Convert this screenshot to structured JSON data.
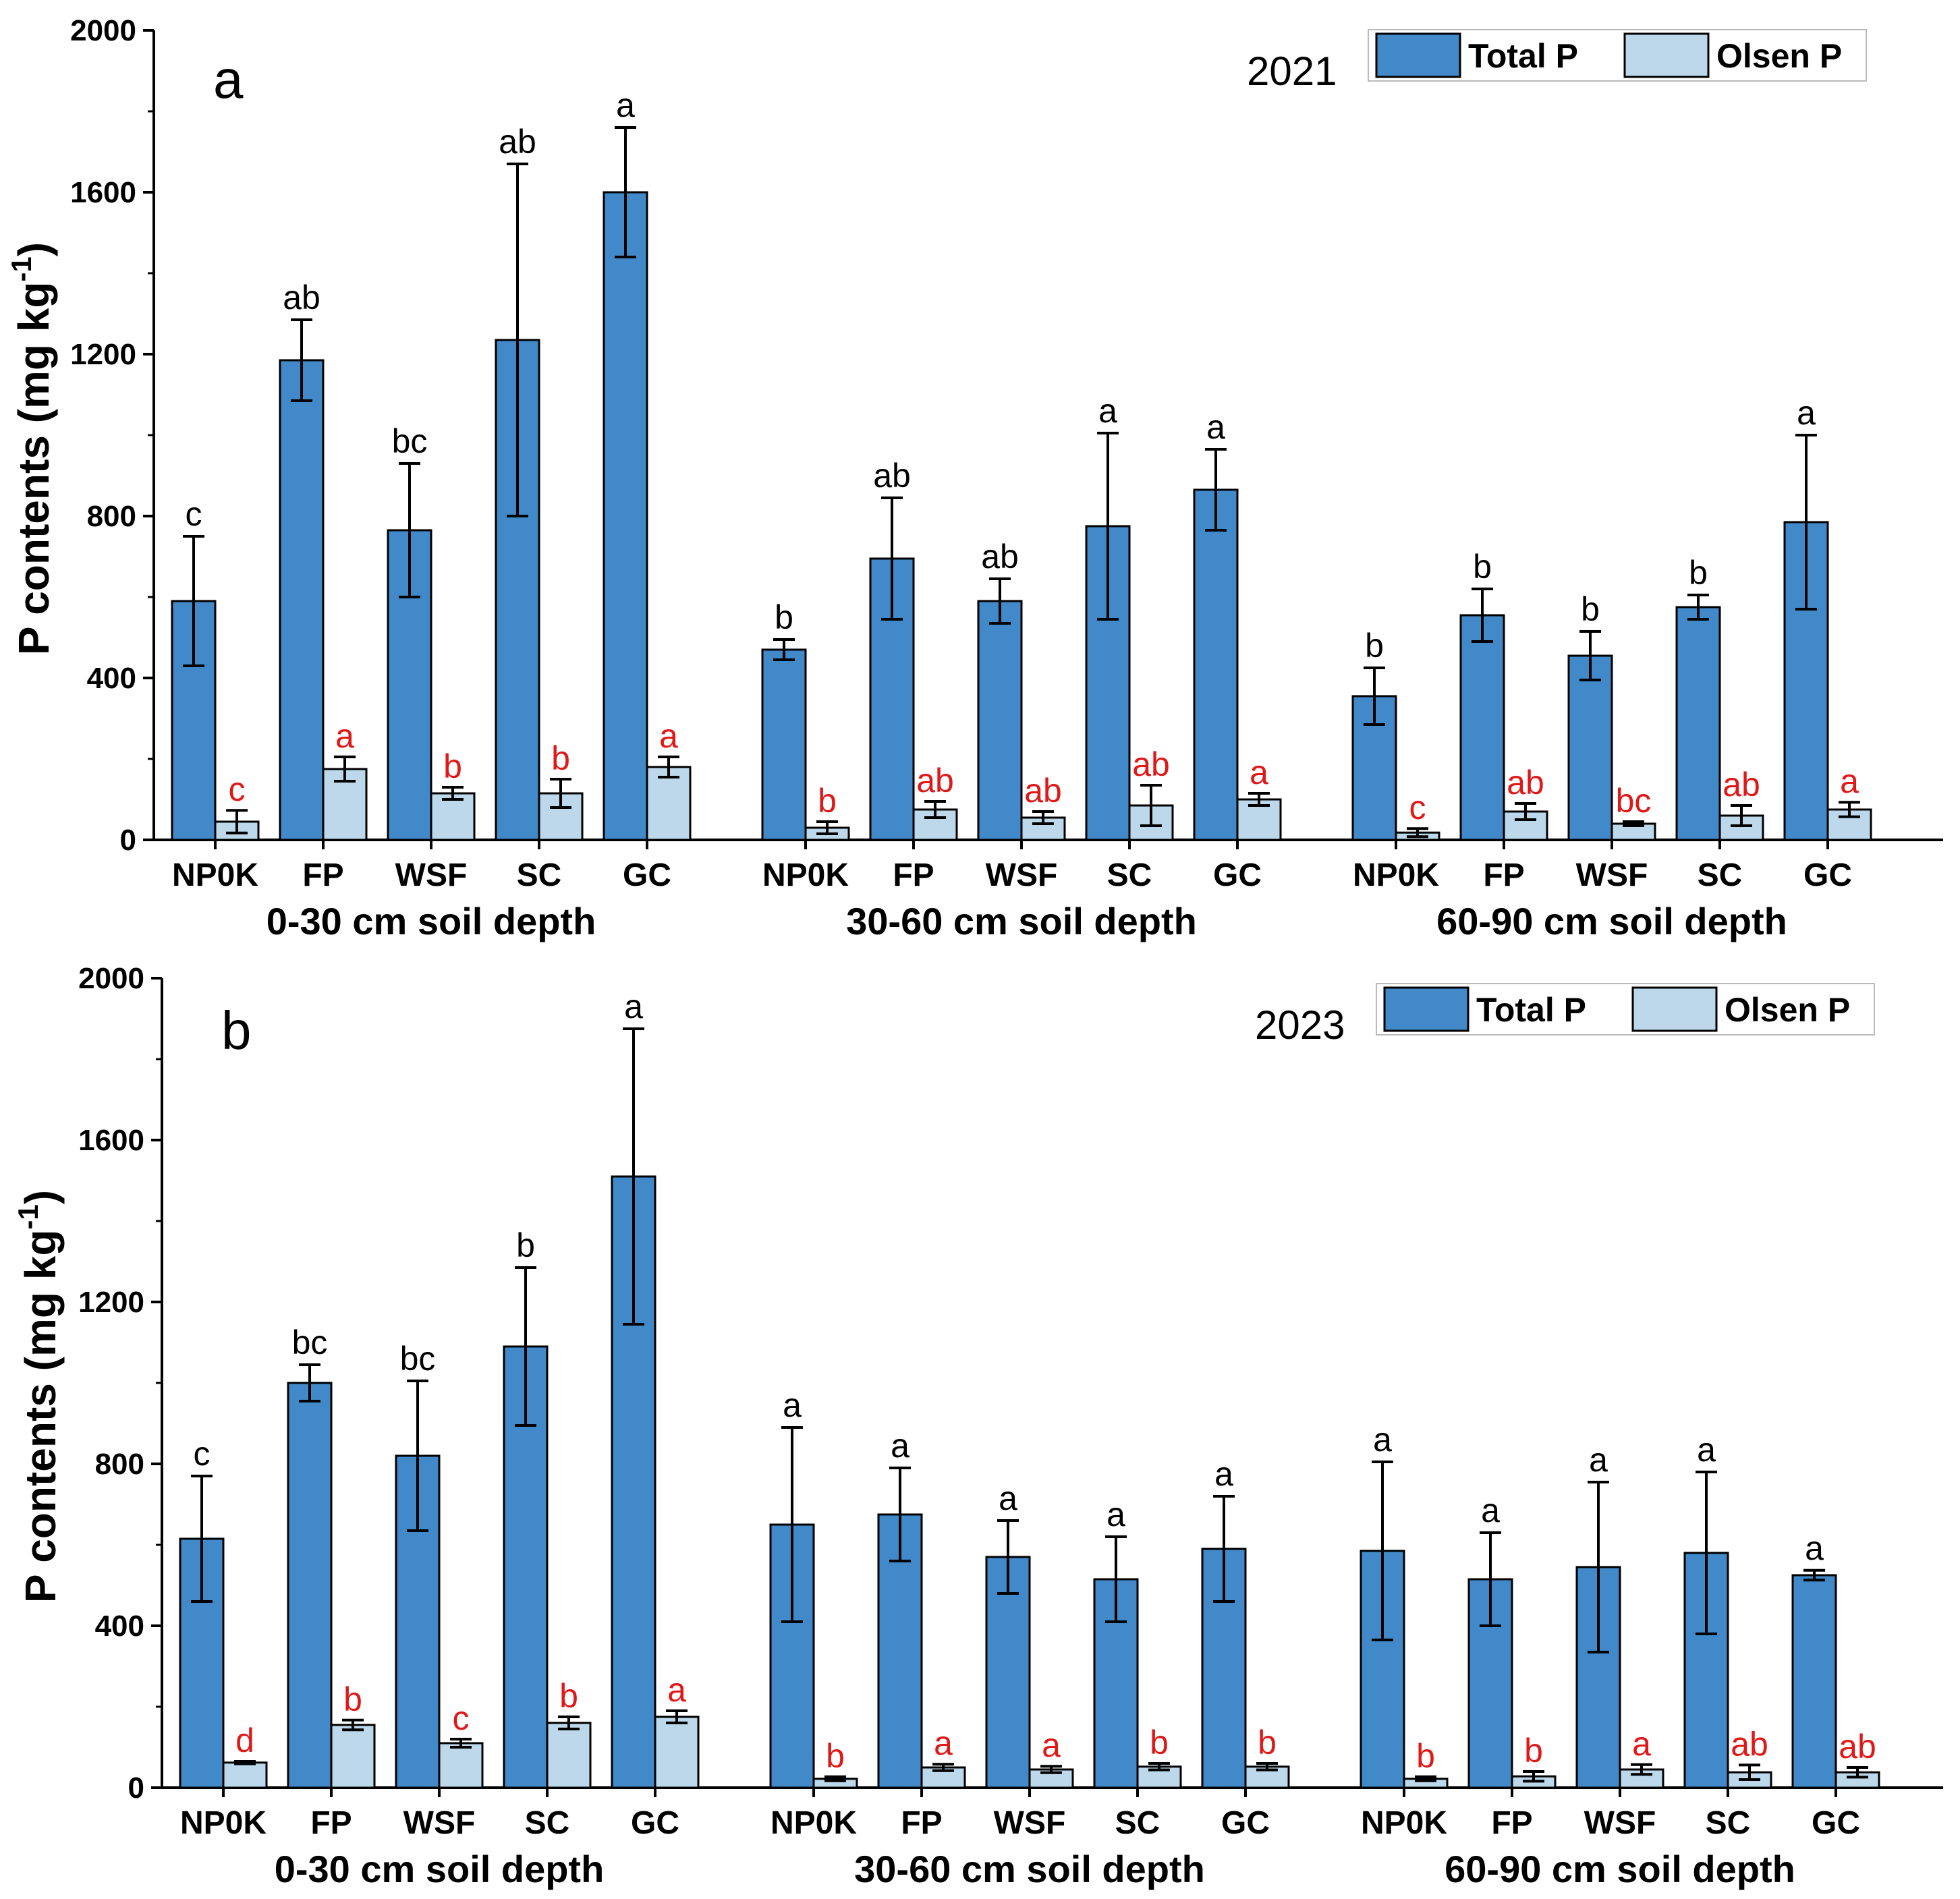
{
  "colors": {
    "total": "#4189c8",
    "olsen": "#bcd8ea",
    "sig_total": "#000000",
    "sig_olsen": "#e01818"
  },
  "chart_data": [
    {
      "type": "bar",
      "panel": "a",
      "year": "2021",
      "ylabel_main": "P contents (mg kg",
      "ylabel_exp": "-1",
      "ylabel_close": ")",
      "ylim": [
        0,
        2000
      ],
      "yticks": [
        "0",
        "400",
        "800",
        "1200",
        "1600",
        "2000"
      ],
      "legend": [
        "Total P",
        "Olsen P"
      ],
      "groups": [
        {
          "label": "0-30 cm soil depth",
          "categories": [
            "NP0K",
            "FP",
            "WSF",
            "SC",
            "GC"
          ],
          "total": [
            590,
            1185,
            765,
            1235,
            1600
          ],
          "total_err": [
            160,
            100,
            165,
            435,
            160
          ],
          "total_sig": [
            "c",
            "ab",
            "bc",
            "ab",
            "a"
          ],
          "olsen": [
            45,
            175,
            115,
            115,
            180
          ],
          "olsen_err": [
            28,
            30,
            15,
            35,
            25
          ],
          "olsen_sig": [
            "c",
            "a",
            "b",
            "b",
            "a"
          ]
        },
        {
          "label": "30-60 cm soil depth",
          "categories": [
            "NP0K",
            "FP",
            "WSF",
            "SC",
            "GC"
          ],
          "total": [
            470,
            695,
            590,
            775,
            865
          ],
          "total_err": [
            25,
            150,
            55,
            230,
            100
          ],
          "total_sig": [
            "b",
            "ab",
            "ab",
            "a",
            "a"
          ],
          "olsen": [
            30,
            75,
            55,
            85,
            100
          ],
          "olsen_err": [
            15,
            20,
            15,
            50,
            15
          ],
          "olsen_sig": [
            "b",
            "ab",
            "ab",
            "ab",
            "a"
          ]
        },
        {
          "label": "60-90 cm soil depth",
          "categories": [
            "NP0K",
            "FP",
            "WSF",
            "SC",
            "GC"
          ],
          "total": [
            355,
            555,
            455,
            575,
            785
          ],
          "total_err": [
            70,
            65,
            60,
            30,
            215
          ],
          "total_sig": [
            "b",
            "b",
            "b",
            "b",
            "a"
          ],
          "olsen": [
            18,
            70,
            40,
            60,
            75
          ],
          "olsen_err": [
            10,
            20,
            5,
            25,
            18
          ],
          "olsen_sig": [
            "c",
            "ab",
            "bc",
            "ab",
            "a"
          ]
        }
      ]
    },
    {
      "type": "bar",
      "panel": "b",
      "year": "2023",
      "ylabel_main": "P contents (mg kg",
      "ylabel_exp": "-1",
      "ylabel_close": ")",
      "ylim": [
        0,
        2000
      ],
      "yticks": [
        "0",
        "400",
        "800",
        "1200",
        "1600",
        "2000"
      ],
      "legend": [
        "Total P",
        "Olsen P"
      ],
      "groups": [
        {
          "label": "0-30 cm soil depth",
          "categories": [
            "NP0K",
            "FP",
            "WSF",
            "SC",
            "GC"
          ],
          "total": [
            615,
            1000,
            820,
            1090,
            1510
          ],
          "total_err": [
            155,
            45,
            185,
            195,
            365
          ],
          "total_sig": [
            "c",
            "bc",
            "bc",
            "b",
            "a"
          ],
          "olsen": [
            62,
            155,
            110,
            160,
            175
          ],
          "olsen_err": [
            3,
            12,
            10,
            15,
            15
          ],
          "olsen_sig": [
            "d",
            "b",
            "c",
            "b",
            "a"
          ]
        },
        {
          "label": "30-60 cm soil depth",
          "categories": [
            "NP0K",
            "FP",
            "WSF",
            "SC",
            "GC"
          ],
          "total": [
            650,
            675,
            570,
            515,
            590
          ],
          "total_err": [
            240,
            115,
            90,
            105,
            130
          ],
          "total_sig": [
            "a",
            "a",
            "a",
            "a",
            "a"
          ],
          "olsen": [
            22,
            50,
            45,
            52,
            52
          ],
          "olsen_err": [
            5,
            8,
            8,
            8,
            8
          ],
          "olsen_sig": [
            "b",
            "a",
            "a",
            "b",
            "b"
          ]
        },
        {
          "label": "60-90 cm soil depth",
          "categories": [
            "NP0K",
            "FP",
            "WSF",
            "SC",
            "GC"
          ],
          "total": [
            585,
            515,
            545,
            580,
            525
          ],
          "total_err": [
            220,
            115,
            210,
            200,
            12
          ],
          "total_sig": [
            "a",
            "a",
            "a",
            "a",
            "a"
          ],
          "olsen": [
            22,
            28,
            45,
            38,
            38
          ],
          "olsen_err": [
            5,
            12,
            12,
            18,
            12
          ],
          "olsen_sig": [
            "b",
            "b",
            "a",
            "ab",
            "ab"
          ]
        }
      ]
    }
  ]
}
